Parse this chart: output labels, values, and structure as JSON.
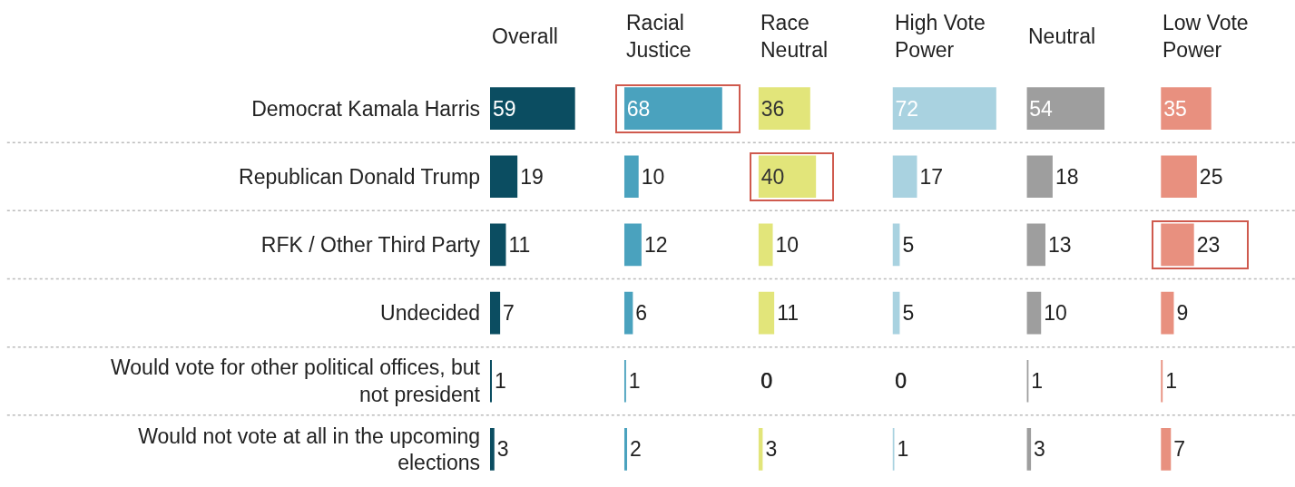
{
  "chart_data": [
    {
      "type": "bar",
      "orientation": "horizontal",
      "title": "Overall",
      "categories": [
        "Democrat Kamala Harris",
        "Republican Donald Trump",
        "RFK / Other Third Party",
        "Undecided",
        "Would vote for other political offices, but not president",
        "Would not vote at all in the upcoming elections"
      ],
      "values": [
        59,
        19,
        11,
        7,
        1,
        3
      ],
      "color": "#0b4d61",
      "data_labels": true,
      "tick_labels": "y"
    },
    {
      "type": "bar",
      "orientation": "horizontal",
      "title": "Racial Justice",
      "categories": [
        "Democrat Kamala Harris",
        "Republican Donald Trump",
        "RFK / Other Third Party",
        "Undecided",
        "Would vote for other political offices, but not president",
        "Would not vote at all in the upcoming elections"
      ],
      "values": [
        68,
        10,
        12,
        6,
        1,
        2
      ],
      "color": "#4aa2be",
      "data_labels": true,
      "tick_labels": false
    },
    {
      "type": "bar",
      "orientation": "horizontal",
      "title": "Race Neutral",
      "categories": [
        "Democrat Kamala Harris",
        "Republican Donald Trump",
        "RFK / Other Third Party",
        "Undecided",
        "Would vote for other political offices, but not president",
        "Would not vote at all in the upcoming elections"
      ],
      "values": [
        36,
        40,
        10,
        11,
        0,
        3
      ],
      "color": "#e2e57a",
      "data_labels": true,
      "tick_labels": false
    },
    {
      "type": "bar",
      "orientation": "horizontal",
      "title": "High Vote Power",
      "categories": [
        "Democrat Kamala Harris",
        "Republican Donald Trump",
        "RFK / Other Third Party",
        "Undecided",
        "Would vote for other political offices, but not president",
        "Would not vote at all in the upcoming elections"
      ],
      "values": [
        72,
        17,
        5,
        5,
        0,
        1
      ],
      "color": "#a9d2e0",
      "data_labels": true,
      "tick_labels": false
    },
    {
      "type": "bar",
      "orientation": "horizontal",
      "title": "Neutral",
      "categories": [
        "Democrat Kamala Harris",
        "Republican Donald Trump",
        "RFK / Other Third Party",
        "Undecided",
        "Would vote for other political offices, but not president",
        "Would not vote at all in the upcoming elections"
      ],
      "values": [
        54,
        18,
        13,
        10,
        1,
        3
      ],
      "color": "#9e9e9e",
      "data_labels": true,
      "tick_labels": false
    },
    {
      "type": "bar",
      "orientation": "horizontal",
      "title": "Low Vote Power",
      "categories": [
        "Democrat Kamala Harris",
        "Republican Donald Trump",
        "RFK / Other Third Party",
        "Undecided",
        "Would vote for other political offices, but not president",
        "Would not vote at all in the upcoming elections"
      ],
      "values": [
        35,
        25,
        23,
        9,
        1,
        7
      ],
      "color": "#e8907f",
      "data_labels": true,
      "tick_labels": false
    }
  ]
}
